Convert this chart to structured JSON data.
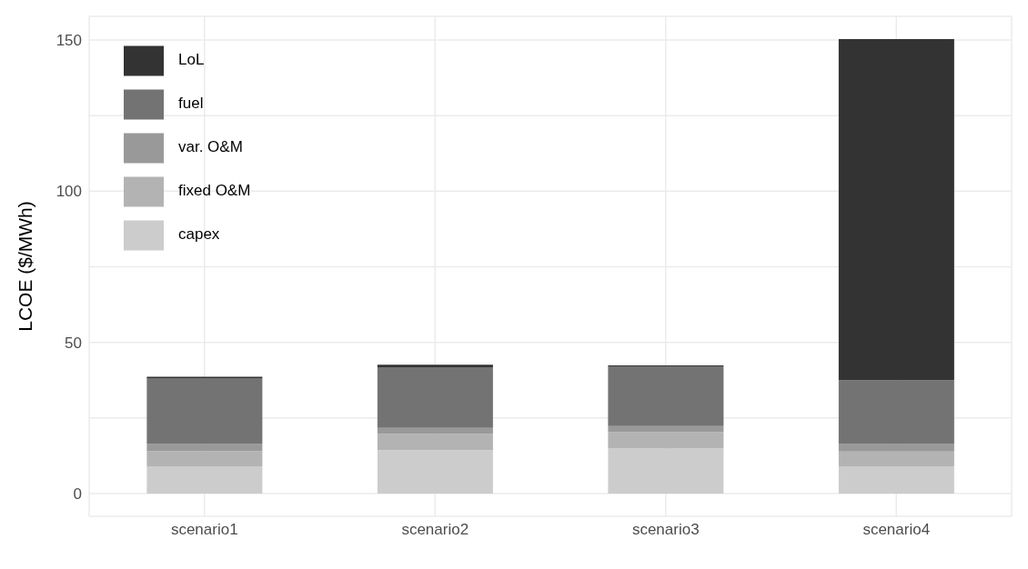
{
  "chart_data": {
    "type": "bar",
    "stacked": true,
    "ylabel": "LCOE ($/MWh)",
    "categories": [
      "scenario1",
      "scenario2",
      "scenario3",
      "scenario4"
    ],
    "series": [
      {
        "name": "capex",
        "color": "#cccccc",
        "values": [
          9.0,
          14.4,
          14.9,
          9.0
        ]
      },
      {
        "name": "fixed O&M",
        "color": "#b3b3b3",
        "values": [
          5.1,
          5.4,
          5.4,
          4.9
        ]
      },
      {
        "name": "var. O&M",
        "color": "#999999",
        "values": [
          2.3,
          1.9,
          2.0,
          2.5
        ]
      },
      {
        "name": "fuel",
        "color": "#737373",
        "values": [
          21.8,
          20.1,
          19.8,
          21.1
        ]
      },
      {
        "name": "LoL",
        "color": "#333333",
        "values": [
          0.4,
          0.8,
          0.3,
          112.8
        ]
      }
    ],
    "ylim": [
      -7.5,
      157.8
    ],
    "yticks": [
      0,
      {
        "value": 25,
        "label": null
      },
      50,
      {
        "value": 75,
        "label": null
      },
      100,
      {
        "value": 125,
        "label": null
      },
      150
    ],
    "grid": true,
    "legend": "top left"
  }
}
